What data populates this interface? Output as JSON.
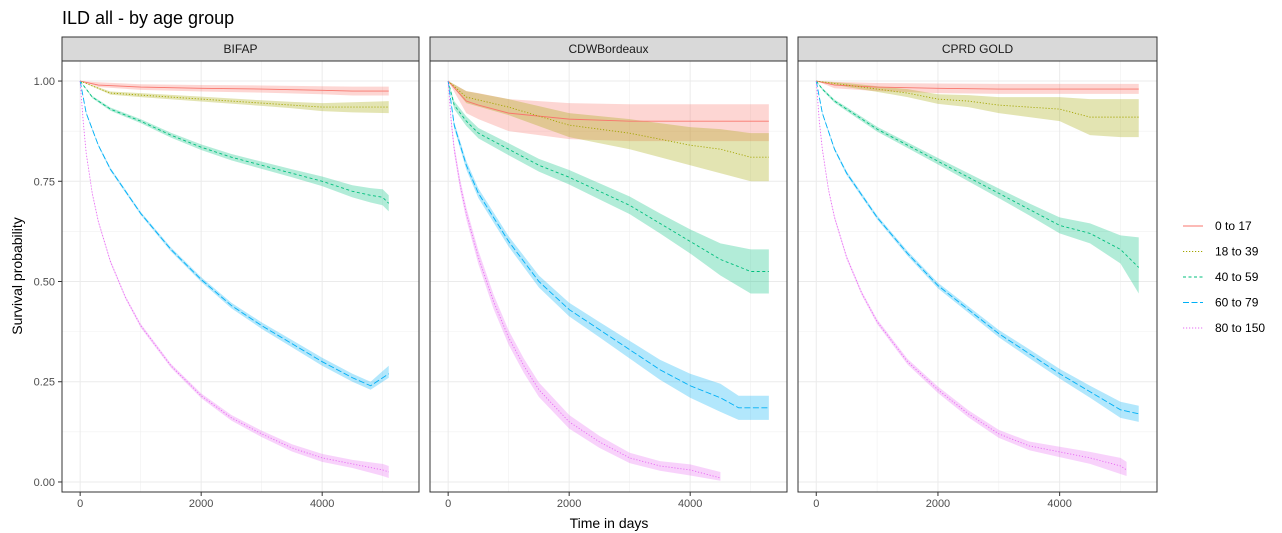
{
  "chart_data": {
    "type": "line",
    "title": "ILD all - by age group",
    "xlabel": "Time in days",
    "ylabel": "Survival probability",
    "xlim": [
      -300,
      5600
    ],
    "ylim": [
      -0.025,
      1.05
    ],
    "x_ticks": [
      0,
      2000,
      4000
    ],
    "y_ticks": [
      0.0,
      0.25,
      0.5,
      0.75,
      1.0
    ],
    "x_tick_labels": [
      "0",
      "2000",
      "4000"
    ],
    "y_tick_labels": [
      "0.00",
      "0.25",
      "0.50",
      "0.75",
      "1.00"
    ],
    "grid": true,
    "legend_position": "right",
    "legend": [
      {
        "label": "0 to 17",
        "color": "#F8766D",
        "dash": "solid"
      },
      {
        "label": "18 to 39",
        "color": "#A3A500",
        "dash": "dotted"
      },
      {
        "label": "40 to 59",
        "color": "#00BF7D",
        "dash": "dashed"
      },
      {
        "label": "60 to 79",
        "color": "#00B0F6",
        "dash": "longdash"
      },
      {
        "label": "80 to 150",
        "color": "#E76BF3",
        "dash": "dotted"
      }
    ],
    "panels": [
      {
        "name": "BIFAP",
        "series": [
          {
            "name": "0 to 17",
            "x": [
              0,
              300,
              1000,
              2000,
              3000,
              4000,
              4500,
              5100
            ],
            "y": [
              1.0,
              0.99,
              0.985,
              0.982,
              0.98,
              0.977,
              0.975,
              0.975
            ],
            "lo": [
              1.0,
              0.985,
              0.978,
              0.974,
              0.971,
              0.967,
              0.964,
              0.964
            ],
            "hi": [
              1.0,
              0.997,
              0.992,
              0.99,
              0.989,
              0.987,
              0.986,
              0.986
            ]
          },
          {
            "name": "18 to 39",
            "x": [
              0,
              500,
              1000,
              2000,
              3000,
              3500,
              4000,
              4500,
              5100
            ],
            "y": [
              1.0,
              0.97,
              0.965,
              0.955,
              0.945,
              0.94,
              0.935,
              0.935,
              0.935
            ],
            "lo": [
              1.0,
              0.966,
              0.96,
              0.949,
              0.938,
              0.932,
              0.925,
              0.922,
              0.92
            ],
            "hi": [
              1.0,
              0.974,
              0.97,
              0.961,
              0.952,
              0.948,
              0.945,
              0.947,
              0.95
            ]
          },
          {
            "name": "40 to 59",
            "x": [
              0,
              200,
              500,
              1000,
              1500,
              2000,
              2500,
              3000,
              3500,
              4000,
              4500,
              4800,
              5000,
              5100
            ],
            "y": [
              1.0,
              0.96,
              0.93,
              0.9,
              0.865,
              0.835,
              0.81,
              0.79,
              0.77,
              0.75,
              0.725,
              0.715,
              0.71,
              0.695
            ],
            "lo": [
              1.0,
              0.957,
              0.926,
              0.895,
              0.859,
              0.828,
              0.802,
              0.781,
              0.76,
              0.738,
              0.71,
              0.697,
              0.69,
              0.675
            ],
            "hi": [
              1.0,
              0.963,
              0.934,
              0.905,
              0.871,
              0.842,
              0.818,
              0.799,
              0.78,
              0.762,
              0.74,
              0.733,
              0.73,
              0.715
            ]
          },
          {
            "name": "60 to 79",
            "x": [
              0,
              100,
              300,
              500,
              1000,
              1500,
              2000,
              2500,
              3000,
              3500,
              4000,
              4500,
              4800,
              5100
            ],
            "y": [
              1.0,
              0.92,
              0.84,
              0.78,
              0.67,
              0.58,
              0.505,
              0.44,
              0.39,
              0.345,
              0.3,
              0.26,
              0.24,
              0.27
            ],
            "lo": [
              1.0,
              0.917,
              0.837,
              0.776,
              0.666,
              0.575,
              0.499,
              0.433,
              0.382,
              0.336,
              0.29,
              0.25,
              0.23,
              0.26
            ],
            "hi": [
              1.0,
              0.923,
              0.843,
              0.784,
              0.674,
              0.585,
              0.511,
              0.447,
              0.398,
              0.354,
              0.31,
              0.27,
              0.25,
              0.29
            ]
          },
          {
            "name": "80 to 150",
            "x": [
              0,
              50,
              100,
              200,
              300,
              500,
              750,
              1000,
              1500,
              2000,
              2500,
              3000,
              3500,
              4000,
              4500,
              5000,
              5100
            ],
            "y": [
              1.0,
              0.9,
              0.82,
              0.72,
              0.65,
              0.55,
              0.46,
              0.39,
              0.29,
              0.215,
              0.16,
              0.12,
              0.085,
              0.06,
              0.045,
              0.03,
              0.025
            ],
            "lo": [
              1.0,
              0.897,
              0.817,
              0.716,
              0.646,
              0.546,
              0.456,
              0.385,
              0.285,
              0.209,
              0.153,
              0.112,
              0.076,
              0.05,
              0.035,
              0.015,
              0.01
            ],
            "hi": [
              1.0,
              0.903,
              0.823,
              0.724,
              0.654,
              0.554,
              0.464,
              0.395,
              0.295,
              0.221,
              0.167,
              0.128,
              0.094,
              0.07,
              0.055,
              0.045,
              0.04
            ]
          }
        ]
      },
      {
        "name": "CDWBordeaux",
        "series": [
          {
            "name": "0 to 17",
            "x": [
              0,
              300,
              500,
              1000,
              2000,
              3000,
              4000,
              5300
            ],
            "y": [
              1.0,
              0.95,
              0.94,
              0.92,
              0.905,
              0.9,
              0.9,
              0.9
            ],
            "lo": [
              1.0,
              0.92,
              0.905,
              0.875,
              0.855,
              0.85,
              0.85,
              0.85
            ],
            "hi": [
              1.0,
              0.975,
              0.97,
              0.955,
              0.945,
              0.942,
              0.942,
              0.942
            ]
          },
          {
            "name": "18 to 39",
            "x": [
              0,
              300,
              1000,
              2000,
              3000,
              4000,
              4500,
              5000,
              5300
            ],
            "y": [
              1.0,
              0.96,
              0.935,
              0.89,
              0.87,
              0.84,
              0.83,
              0.81,
              0.81
            ],
            "lo": [
              1.0,
              0.945,
              0.915,
              0.86,
              0.83,
              0.79,
              0.77,
              0.75,
              0.75
            ],
            "hi": [
              1.0,
              0.975,
              0.955,
              0.92,
              0.905,
              0.885,
              0.88,
              0.87,
              0.87
            ]
          },
          {
            "name": "40 to 59",
            "x": [
              0,
              100,
              300,
              500,
              1000,
              1500,
              2000,
              2500,
              3000,
              3500,
              4000,
              4500,
              5000,
              5300
            ],
            "y": [
              1.0,
              0.94,
              0.9,
              0.87,
              0.83,
              0.79,
              0.76,
              0.725,
              0.69,
              0.645,
              0.6,
              0.555,
              0.525,
              0.525
            ],
            "lo": [
              1.0,
              0.93,
              0.888,
              0.857,
              0.815,
              0.774,
              0.742,
              0.705,
              0.668,
              0.62,
              0.57,
              0.515,
              0.47,
              0.47
            ],
            "hi": [
              1.0,
              0.95,
              0.912,
              0.883,
              0.845,
              0.806,
              0.778,
              0.745,
              0.712,
              0.67,
              0.63,
              0.595,
              0.58,
              0.58
            ]
          },
          {
            "name": "60 to 79",
            "x": [
              0,
              100,
              300,
              500,
              1000,
              1500,
              2000,
              2500,
              3000,
              3500,
              4000,
              4500,
              4800,
              5300
            ],
            "y": [
              1.0,
              0.89,
              0.79,
              0.72,
              0.6,
              0.5,
              0.43,
              0.38,
              0.33,
              0.28,
              0.24,
              0.21,
              0.185,
              0.185
            ],
            "lo": [
              1.0,
              0.882,
              0.779,
              0.708,
              0.587,
              0.485,
              0.413,
              0.361,
              0.308,
              0.255,
              0.21,
              0.175,
              0.155,
              0.155
            ],
            "hi": [
              1.0,
              0.898,
              0.801,
              0.732,
              0.613,
              0.515,
              0.447,
              0.399,
              0.352,
              0.305,
              0.27,
              0.245,
              0.215,
              0.215
            ]
          },
          {
            "name": "80 to 150",
            "x": [
              0,
              50,
              100,
              200,
              300,
              500,
              750,
              1000,
              1250,
              1500,
              2000,
              2500,
              3000,
              3500,
              4000,
              4500
            ],
            "y": [
              1.0,
              0.9,
              0.83,
              0.74,
              0.67,
              0.56,
              0.45,
              0.36,
              0.29,
              0.23,
              0.15,
              0.1,
              0.06,
              0.04,
              0.03,
              0.01
            ],
            "lo": [
              1.0,
              0.89,
              0.818,
              0.726,
              0.655,
              0.543,
              0.432,
              0.342,
              0.272,
              0.212,
              0.133,
              0.085,
              0.047,
              0.028,
              0.016,
              0.003
            ],
            "hi": [
              1.0,
              0.91,
              0.842,
              0.754,
              0.685,
              0.577,
              0.468,
              0.378,
              0.308,
              0.248,
              0.167,
              0.115,
              0.073,
              0.052,
              0.044,
              0.025
            ]
          }
        ]
      },
      {
        "name": "CPRD GOLD",
        "series": [
          {
            "name": "0 to 17",
            "x": [
              0,
              300,
              1000,
              2000,
              3000,
              4000,
              5300
            ],
            "y": [
              1.0,
              0.99,
              0.985,
              0.982,
              0.98,
              0.98,
              0.98
            ],
            "lo": [
              1.0,
              0.982,
              0.975,
              0.97,
              0.968,
              0.968,
              0.968
            ],
            "hi": [
              1.0,
              0.998,
              0.995,
              0.994,
              0.993,
              0.993,
              0.993
            ]
          },
          {
            "name": "18 to 39",
            "x": [
              0,
              500,
              1000,
              1500,
              2000,
              2500,
              3000,
              3500,
              4000,
              4500,
              5000,
              5300
            ],
            "y": [
              1.0,
              0.99,
              0.98,
              0.97,
              0.955,
              0.95,
              0.94,
              0.935,
              0.93,
              0.91,
              0.91,
              0.91
            ],
            "lo": [
              1.0,
              0.985,
              0.973,
              0.96,
              0.943,
              0.935,
              0.92,
              0.91,
              0.9,
              0.865,
              0.86,
              0.86
            ],
            "hi": [
              1.0,
              0.995,
              0.987,
              0.98,
              0.967,
              0.965,
              0.96,
              0.96,
              0.96,
              0.955,
              0.955,
              0.955
            ]
          },
          {
            "name": "40 to 59",
            "x": [
              0,
              100,
              300,
              500,
              1000,
              1500,
              2000,
              2500,
              3000,
              3500,
              4000,
              4500,
              5000,
              5300
            ],
            "y": [
              1.0,
              0.98,
              0.95,
              0.93,
              0.88,
              0.84,
              0.8,
              0.76,
              0.72,
              0.68,
              0.64,
              0.62,
              0.58,
              0.535
            ],
            "lo": [
              1.0,
              0.977,
              0.946,
              0.925,
              0.874,
              0.833,
              0.792,
              0.75,
              0.708,
              0.665,
              0.62,
              0.595,
              0.545,
              0.47
            ],
            "hi": [
              1.0,
              0.983,
              0.954,
              0.935,
              0.886,
              0.847,
              0.808,
              0.77,
              0.732,
              0.695,
              0.66,
              0.645,
              0.615,
              0.61
            ]
          },
          {
            "name": "60 to 79",
            "x": [
              0,
              100,
              300,
              500,
              1000,
              1500,
              2000,
              2500,
              3000,
              3500,
              4000,
              4500,
              5000,
              5300
            ],
            "y": [
              1.0,
              0.92,
              0.83,
              0.77,
              0.66,
              0.57,
              0.49,
              0.43,
              0.37,
              0.32,
              0.27,
              0.225,
              0.18,
              0.17
            ],
            "lo": [
              1.0,
              0.917,
              0.826,
              0.765,
              0.655,
              0.564,
              0.483,
              0.422,
              0.361,
              0.309,
              0.258,
              0.21,
              0.16,
              0.15
            ],
            "hi": [
              1.0,
              0.923,
              0.834,
              0.775,
              0.665,
              0.576,
              0.497,
              0.438,
              0.379,
              0.331,
              0.282,
              0.24,
              0.2,
              0.19
            ]
          },
          {
            "name": "80 to 150",
            "x": [
              0,
              50,
              100,
              200,
              300,
              500,
              750,
              1000,
              1500,
              2000,
              2500,
              3000,
              3500,
              4000,
              4500,
              5000,
              5100
            ],
            "y": [
              1.0,
              0.9,
              0.83,
              0.73,
              0.66,
              0.56,
              0.47,
              0.4,
              0.3,
              0.23,
              0.17,
              0.12,
              0.09,
              0.075,
              0.06,
              0.04,
              0.03
            ],
            "lo": [
              1.0,
              0.897,
              0.826,
              0.726,
              0.655,
              0.555,
              0.465,
              0.394,
              0.293,
              0.222,
              0.161,
              0.11,
              0.079,
              0.062,
              0.045,
              0.02,
              0.015
            ],
            "hi": [
              1.0,
              0.903,
              0.834,
              0.734,
              0.665,
              0.565,
              0.475,
              0.406,
              0.307,
              0.238,
              0.179,
              0.13,
              0.101,
              0.088,
              0.075,
              0.06,
              0.05
            ]
          }
        ]
      }
    ]
  }
}
